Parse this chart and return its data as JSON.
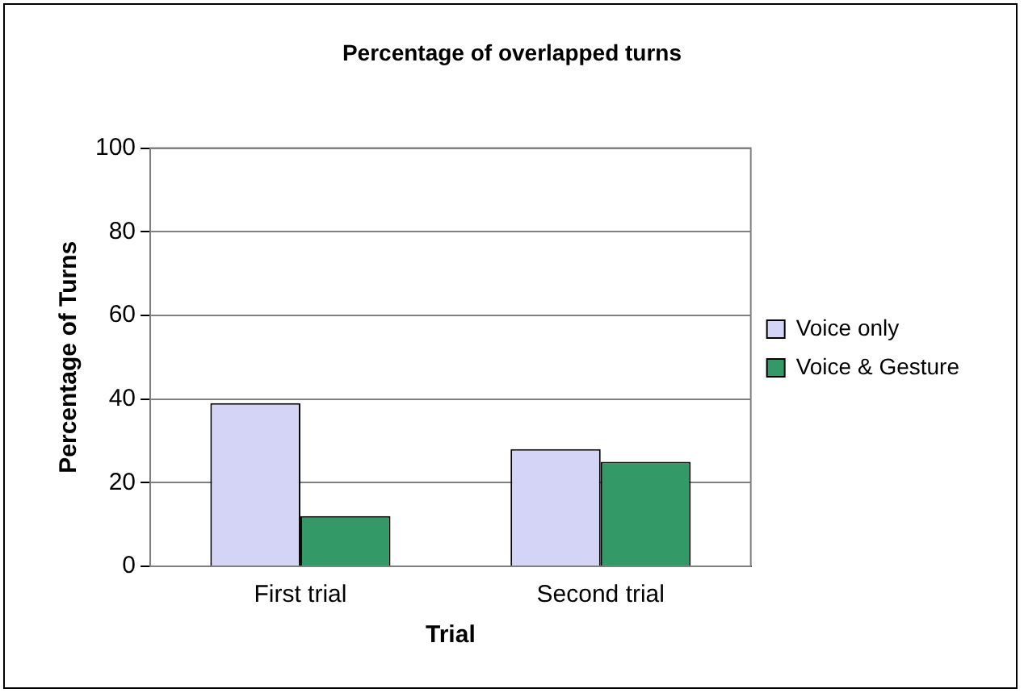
{
  "chart_data": {
    "type": "bar",
    "title": "Percentage of overlapped turns",
    "xlabel": "Trial",
    "ylabel": "Percentage of Turns",
    "categories": [
      "First trial",
      "Second trial"
    ],
    "series": [
      {
        "name": "Voice only",
        "color": "#d4d4f7",
        "values": [
          39,
          28
        ]
      },
      {
        "name": "Voice & Gesture",
        "color": "#339966",
        "values": [
          12,
          25
        ]
      }
    ],
    "ylim": [
      0,
      100
    ],
    "yticks": [
      0,
      20,
      40,
      60,
      80,
      100
    ],
    "grid": "y",
    "legend": "right"
  }
}
